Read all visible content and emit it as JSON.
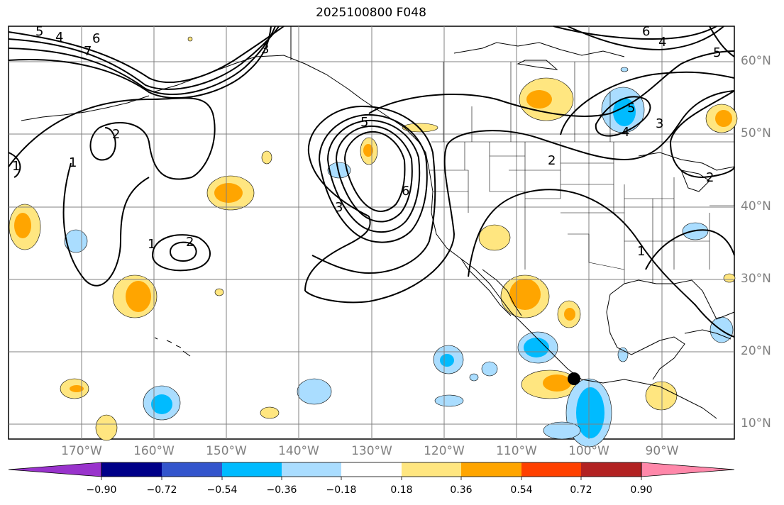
{
  "title": "2025100800 F048",
  "lon_labels": [
    "170°W",
    "160°W",
    "150°W",
    "140°W",
    "130°W",
    "120°W",
    "110°W",
    "100°W",
    "90°W"
  ],
  "lat_labels": [
    "60°N",
    "50°N",
    "40°N",
    "30°N",
    "20°N",
    "10°N"
  ],
  "contour_labels": [
    "1",
    "1",
    "1",
    "2",
    "2",
    "2",
    "3",
    "3",
    "4",
    "4",
    "5",
    "5",
    "5",
    "6",
    "6",
    "7",
    "1",
    "2",
    "3",
    "4",
    "5",
    "6"
  ],
  "colorbar": {
    "ticks": [
      "−0.90",
      "−0.72",
      "−0.54",
      "−0.36",
      "−0.18",
      "0.18",
      "0.36",
      "0.54",
      "0.72",
      "0.90"
    ],
    "colors": [
      "#9933cc",
      "#000088",
      "#3355cc",
      "#00bbff",
      "#aaddff",
      "#ffffff",
      "#ffe680",
      "#ffa500",
      "#ff4000",
      "#b22222",
      "#ff88aa"
    ]
  },
  "colors": {
    "light_yellow": "#ffe680",
    "orange": "#ffa500",
    "light_blue": "#aaddff",
    "cyan_blue": "#00bbff",
    "contour": "#000000",
    "grid": "#808080"
  },
  "marker": "black-dot"
}
